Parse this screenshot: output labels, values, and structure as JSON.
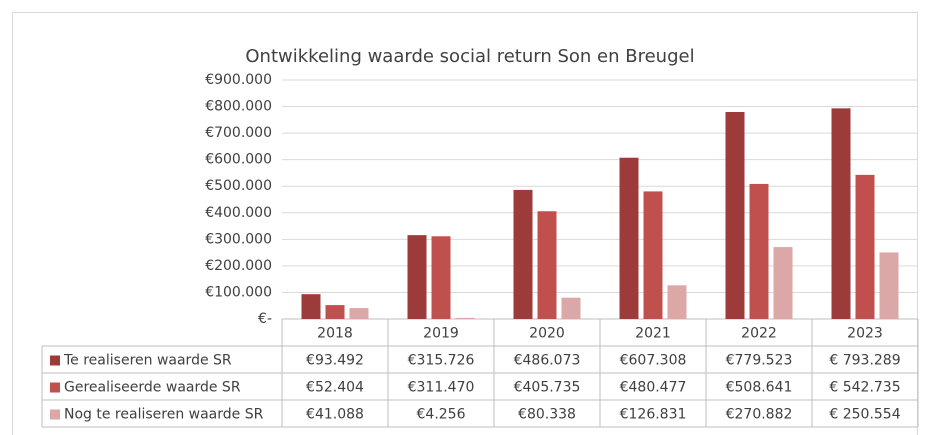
{
  "chart_data": {
    "type": "bar",
    "title": "Ontwikkeling waarde social return Son en Breugel",
    "categories": [
      "2018",
      "2019",
      "2020",
      "2021",
      "2022",
      "2023"
    ],
    "series": [
      {
        "name": "Te realiseren waarde SR",
        "color": "#9c3b3a",
        "values": [
          93492,
          315726,
          486073,
          607308,
          779523,
          793289
        ],
        "value_labels": [
          "€93.492",
          "€315.726",
          "€486.073",
          "€607.308",
          "€779.523",
          "€ 793.289"
        ]
      },
      {
        "name": "Gerealiseerde waarde SR",
        "color": "#c0504d",
        "values": [
          52404,
          311470,
          405735,
          480477,
          508641,
          542735
        ],
        "value_labels": [
          "€52.404",
          "€311.470",
          "€405.735",
          "€480.477",
          "€508.641",
          "€ 542.735"
        ]
      },
      {
        "name": "Nog te realiseren waarde SR",
        "color": "#dba8a7",
        "values": [
          41088,
          4256,
          80338,
          126831,
          270882,
          250554
        ],
        "value_labels": [
          "€41.088",
          "€4.256",
          "€80.338",
          "€126.831",
          "€270.882",
          "€ 250.554"
        ]
      }
    ],
    "ylim": [
      0,
      900000
    ],
    "yticks": [
      {
        "value": 0,
        "label": "€-"
      },
      {
        "value": 100000,
        "label": "€100.000"
      },
      {
        "value": 200000,
        "label": "€200.000"
      },
      {
        "value": 300000,
        "label": "€300.000"
      },
      {
        "value": 400000,
        "label": "€400.000"
      },
      {
        "value": 500000,
        "label": "€500.000"
      },
      {
        "value": 600000,
        "label": "€600.000"
      },
      {
        "value": 700000,
        "label": "€700.000"
      },
      {
        "value": 800000,
        "label": "€800.000"
      },
      {
        "value": 900000,
        "label": "€900.000"
      }
    ],
    "grid": true
  }
}
